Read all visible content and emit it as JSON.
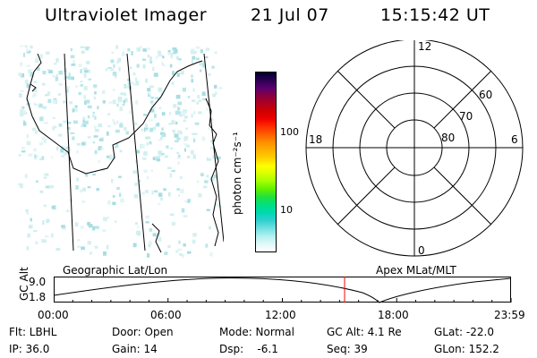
{
  "header": {
    "instrument": "Ultraviolet Imager",
    "date": "21 Jul 07",
    "time": "15:15:42 UT"
  },
  "colorbar": {
    "label": "photon cm⁻²s⁻¹",
    "ticks": [
      "100",
      "10"
    ],
    "colors": [
      "#000033",
      "#2a0050",
      "#5a0070",
      "#8a0040",
      "#b00020",
      "#d00000",
      "#f00000",
      "#ff3000",
      "#ff6000",
      "#ff9000",
      "#ffb000",
      "#ffd000",
      "#ffff00",
      "#d8ff00",
      "#a0ff00",
      "#60f000",
      "#20e040",
      "#00e080",
      "#00d8b0",
      "#30d0d0",
      "#70e0e0",
      "#b0f0f0",
      "#e0f8f8",
      "#ffffff"
    ]
  },
  "polar": {
    "mlt_labels": [
      "12",
      "18",
      "6",
      "0"
    ],
    "lat_labels": [
      "60",
      "70",
      "80"
    ]
  },
  "timeline": {
    "left_label": "Geographic Lat/Lon",
    "right_label": "Apex MLat/MLT",
    "axis_label": "GC Alt",
    "y_max": "9.0",
    "y_min": "1.8",
    "x_ticks": [
      "00:00",
      "06:00",
      "12:00",
      "18:00",
      "23:59"
    ],
    "current_time_fraction": 0.636,
    "marker_color": "#ff0000"
  },
  "footer": {
    "filter": "Flt: LBHL",
    "ip": "IP: 36.0",
    "door": "Door: Open",
    "gain": "Gain: 14",
    "mode": "Mode: Normal",
    "dsp": "Dsp:    -6.1",
    "gc_alt": "GC Alt: 4.1 Re",
    "seq": "Seq: 39",
    "glat": "GLat: -22.0",
    "glon": "GLon: 152.2"
  }
}
